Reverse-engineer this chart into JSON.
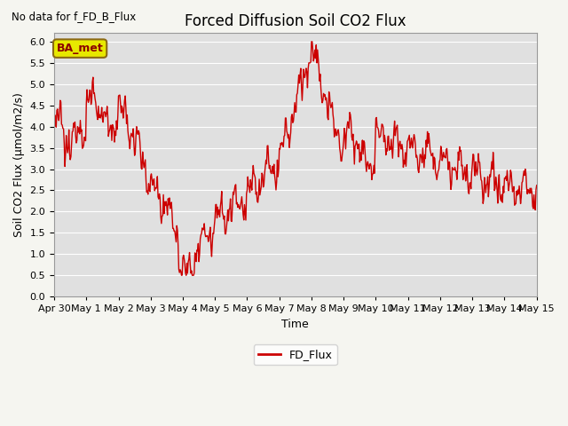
{
  "title": "Forced Diffusion Soil CO2 Flux",
  "xlabel": "Time",
  "ylabel": "Soil CO2 Flux (μmol/m2/s)",
  "ylim": [
    0.0,
    6.2
  ],
  "yticks": [
    0.0,
    0.5,
    1.0,
    1.5,
    2.0,
    2.5,
    3.0,
    3.5,
    4.0,
    4.5,
    5.0,
    5.5,
    6.0
  ],
  "line_color": "#cc0000",
  "line_width": 1.0,
  "bg_color": "#e0e0e0",
  "fig_bg_color": "#f5f5f0",
  "legend_label": "FD_Flux",
  "no_data_text": "No data for f_FD_B_Flux",
  "ba_met_text": "BA_met",
  "grid_color": "#ffffff",
  "title_fontsize": 12,
  "label_fontsize": 9,
  "tick_fontsize": 8
}
